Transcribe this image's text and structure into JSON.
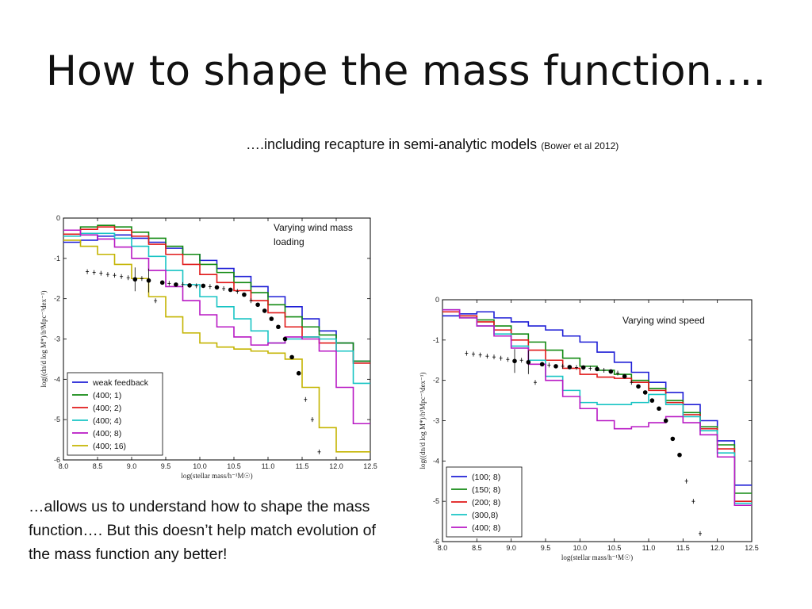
{
  "slide": {
    "title": "How to shape the mass function….",
    "subtitle": "….including recapture in semi-analytic models",
    "subtitle_ref": "(Bower et al 2012)",
    "body": "…allows us to understand how to shape the mass function…. But this doesn’t help match evolution of the mass function any better!"
  },
  "chart_data": [
    {
      "type": "line",
      "annotation": [
        "Varying wind mass",
        "loading"
      ],
      "xlabel": "log(stellar mass/h⁻¹M☉)",
      "ylabel": "log((dn/d log M*)/h³Mpc⁻³dex⁻¹)",
      "xlim": [
        8.0,
        12.5
      ],
      "ylim": [
        -6,
        0
      ],
      "xticks": [
        "8.0",
        "8.5",
        "9.0",
        "9.5",
        "10.0",
        "10.5",
        "11.0",
        "11.5",
        "12.0",
        "12.5"
      ],
      "yticks": [
        "0",
        "-1",
        "-2",
        "-3",
        "-4",
        "-5",
        "-6"
      ],
      "legend_position": "lower-left",
      "x": [
        8.0,
        8.25,
        8.5,
        8.75,
        9.0,
        9.25,
        9.5,
        9.75,
        10.0,
        10.25,
        10.5,
        10.75,
        11.0,
        11.25,
        11.5,
        11.75,
        12.0,
        12.25
      ],
      "series": [
        {
          "name": "weak feedback",
          "color": "#1f1fd6",
          "values": [
            -0.6,
            -0.55,
            -0.45,
            -0.42,
            -0.5,
            -0.6,
            -0.75,
            -0.9,
            -1.05,
            -1.25,
            -1.45,
            -1.7,
            -1.95,
            -2.2,
            -2.5,
            -2.8,
            -3.1,
            -3.55
          ]
        },
        {
          "name": "(400; 1)",
          "color": "#128a12",
          "values": [
            -0.3,
            -0.22,
            -0.18,
            -0.22,
            -0.35,
            -0.5,
            -0.7,
            -0.9,
            -1.15,
            -1.35,
            -1.6,
            -1.85,
            -2.15,
            -2.45,
            -2.7,
            -2.9,
            -3.1,
            -3.55
          ]
        },
        {
          "name": "(400; 2)",
          "color": "#e01818",
          "values": [
            -0.4,
            -0.28,
            -0.22,
            -0.3,
            -0.45,
            -0.65,
            -0.9,
            -1.15,
            -1.4,
            -1.6,
            -1.8,
            -2.05,
            -2.35,
            -2.7,
            -2.95,
            -3.1,
            -3.3,
            -3.6
          ]
        },
        {
          "name": "(400; 4)",
          "color": "#18c4c4",
          "values": [
            -0.45,
            -0.38,
            -0.38,
            -0.5,
            -0.7,
            -0.95,
            -1.3,
            -1.65,
            -1.95,
            -2.2,
            -2.5,
            -2.8,
            -3.1,
            -3.0,
            -2.95,
            -3.0,
            -3.3,
            -4.1
          ]
        },
        {
          "name": "(400; 8)",
          "color": "#b818c4",
          "values": [
            -0.3,
            -0.42,
            -0.52,
            -0.72,
            -1.0,
            -1.3,
            -1.7,
            -2.05,
            -2.4,
            -2.7,
            -2.95,
            -3.15,
            -3.1,
            -2.95,
            -3.0,
            -3.3,
            -4.2,
            -5.1
          ]
        },
        {
          "name": "(400; 16)",
          "color": "#c4b400",
          "values": [
            -0.55,
            -0.7,
            -0.9,
            -1.15,
            -1.5,
            -1.95,
            -2.45,
            -2.85,
            -3.1,
            -3.2,
            -3.25,
            -3.3,
            -3.35,
            -3.5,
            -4.2,
            -5.2,
            -5.8,
            -5.8
          ]
        }
      ],
      "observations": {
        "x": [
          8.35,
          8.45,
          8.55,
          8.65,
          8.75,
          8.85,
          8.95,
          9.05,
          9.15,
          9.25,
          9.35,
          9.45,
          9.55,
          9.65,
          9.75,
          9.85,
          9.95,
          10.05,
          10.15,
          10.25,
          10.35,
          10.45,
          10.55,
          10.65,
          10.75,
          10.85,
          10.95,
          11.05,
          11.15,
          11.25,
          11.35,
          11.45,
          11.55,
          11.65,
          11.75
        ],
        "y": [
          -1.33,
          -1.35,
          -1.37,
          -1.4,
          -1.42,
          -1.45,
          -1.48,
          -1.52,
          -1.5,
          -1.55,
          -2.05,
          -1.6,
          -1.62,
          -1.65,
          -1.65,
          -1.67,
          -1.68,
          -1.68,
          -1.7,
          -1.72,
          -1.75,
          -1.78,
          -1.82,
          -1.9,
          -2.05,
          -2.15,
          -2.3,
          -2.5,
          -2.7,
          -3.0,
          -3.45,
          -3.85,
          -4.5,
          -5.0,
          -5.8
        ]
      }
    },
    {
      "type": "line",
      "annotation": [
        "Varying wind speed"
      ],
      "xlabel": "log(stellar mass/h⁻¹M☉)",
      "ylabel": "log((dn/d log M*)/h³Mpc⁻³dex⁻¹)",
      "xlim": [
        8.0,
        12.5
      ],
      "ylim": [
        -6,
        0
      ],
      "xticks": [
        "8.0",
        "8.5",
        "9.0",
        "9.5",
        "10.0",
        "10.5",
        "11.0",
        "11.5",
        "12.0",
        "12.5"
      ],
      "yticks": [
        "0",
        "-1",
        "-2",
        "-3",
        "-4",
        "-5",
        "-6"
      ],
      "legend_position": "lower-left",
      "x": [
        8.0,
        8.25,
        8.5,
        8.75,
        9.0,
        9.25,
        9.5,
        9.75,
        10.0,
        10.25,
        10.5,
        10.75,
        11.0,
        11.25,
        11.5,
        11.75,
        12.0,
        12.25
      ],
      "series": [
        {
          "name": "(100; 8)",
          "color": "#1f1fd6",
          "values": [
            -0.4,
            -0.35,
            -0.3,
            -0.45,
            -0.55,
            -0.65,
            -0.75,
            -0.9,
            -1.05,
            -1.3,
            -1.55,
            -1.8,
            -2.05,
            -2.3,
            -2.6,
            -3.0,
            -3.5,
            -4.6
          ]
        },
        {
          "name": "(150; 8)",
          "color": "#128a12",
          "values": [
            -0.3,
            -0.4,
            -0.5,
            -0.65,
            -0.85,
            -1.05,
            -1.25,
            -1.45,
            -1.65,
            -1.75,
            -1.85,
            -2.0,
            -2.2,
            -2.5,
            -2.8,
            -3.15,
            -3.6,
            -4.8
          ]
        },
        {
          "name": "(200; 8)",
          "color": "#e01818",
          "values": [
            -0.3,
            -0.4,
            -0.55,
            -0.75,
            -1.0,
            -1.25,
            -1.5,
            -1.7,
            -1.85,
            -1.92,
            -1.95,
            -2.05,
            -2.25,
            -2.55,
            -2.85,
            -3.2,
            -3.7,
            -5.0
          ]
        },
        {
          "name": "(300,8)",
          "color": "#18c4c4",
          "values": [
            -0.25,
            -0.45,
            -0.65,
            -0.85,
            -1.15,
            -1.5,
            -1.9,
            -2.25,
            -2.55,
            -2.6,
            -2.6,
            -2.55,
            -2.35,
            -2.6,
            -2.9,
            -3.25,
            -3.8,
            -5.05
          ]
        },
        {
          "name": "(400; 8)",
          "color": "#b818c4",
          "values": [
            -0.25,
            -0.45,
            -0.65,
            -0.9,
            -1.2,
            -1.6,
            -2.0,
            -2.4,
            -2.7,
            -3.0,
            -3.2,
            -3.15,
            -3.05,
            -2.9,
            -3.05,
            -3.35,
            -3.9,
            -5.1
          ]
        }
      ],
      "observations": {
        "x": [
          8.35,
          8.45,
          8.55,
          8.65,
          8.75,
          8.85,
          8.95,
          9.05,
          9.15,
          9.25,
          9.35,
          9.45,
          9.55,
          9.65,
          9.75,
          9.85,
          9.95,
          10.05,
          10.15,
          10.25,
          10.35,
          10.45,
          10.55,
          10.65,
          10.75,
          10.85,
          10.95,
          11.05,
          11.15,
          11.25,
          11.35,
          11.45,
          11.55,
          11.65,
          11.75
        ],
        "y": [
          -1.33,
          -1.35,
          -1.37,
          -1.4,
          -1.42,
          -1.45,
          -1.48,
          -1.52,
          -1.5,
          -1.55,
          -2.05,
          -1.6,
          -1.62,
          -1.65,
          -1.65,
          -1.67,
          -1.68,
          -1.68,
          -1.7,
          -1.72,
          -1.75,
          -1.78,
          -1.82,
          -1.9,
          -2.05,
          -2.15,
          -2.3,
          -2.5,
          -2.7,
          -3.0,
          -3.45,
          -3.85,
          -4.5,
          -5.0,
          -5.8
        ]
      }
    }
  ]
}
